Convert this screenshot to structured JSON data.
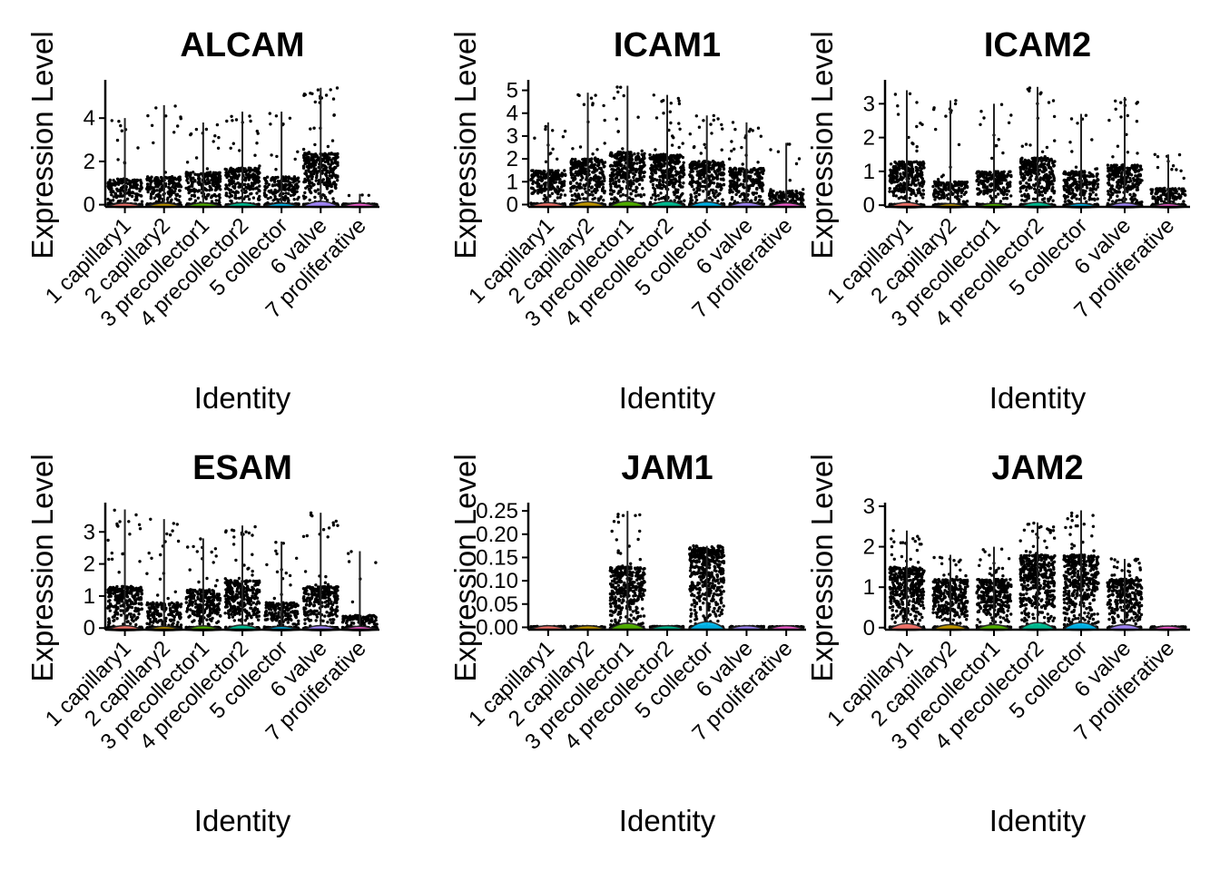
{
  "chart_data": [
    {
      "type": "violin",
      "title": "ALCAM",
      "xlabel": "Identity",
      "ylabel": "Expression Level",
      "categories": [
        "1 capillary1",
        "2 capillary2",
        "3 precollector1",
        "4 precollector2",
        "5 collector",
        "6 valve",
        "7 proliferative"
      ],
      "yticks": [
        0,
        2,
        4
      ],
      "ylim": [
        -0.1,
        5.6
      ],
      "max": [
        4.0,
        4.6,
        3.8,
        4.3,
        4.3,
        5.4,
        0.5
      ],
      "spread": [
        1.2,
        1.3,
        1.5,
        1.7,
        1.3,
        2.4,
        0.02
      ],
      "colors": [
        "#F8766D",
        "#C49A00",
        "#53B400",
        "#00C094",
        "#00B6EB",
        "#A58AFF",
        "#FB61D7"
      ]
    },
    {
      "type": "violin",
      "title": "ICAM1",
      "xlabel": "Identity",
      "ylabel": "Expression Level",
      "categories": [
        "1 capillary1",
        "2 capillary2",
        "3 precollector1",
        "4 precollector2",
        "5 collector",
        "6 valve",
        "7 proliferative"
      ],
      "yticks": [
        0,
        1,
        2,
        3,
        4,
        5
      ],
      "ylim": [
        -0.1,
        5.3
      ],
      "max": [
        3.6,
        4.9,
        5.2,
        4.8,
        3.9,
        3.6,
        2.7
      ],
      "spread": [
        1.5,
        2.0,
        2.3,
        2.2,
        1.9,
        1.6,
        0.6
      ],
      "colors": [
        "#F8766D",
        "#C49A00",
        "#53B400",
        "#00C094",
        "#00B6EB",
        "#A58AFF",
        "#FB61D7"
      ]
    },
    {
      "type": "violin",
      "title": "ICAM2",
      "xlabel": "Identity",
      "ylabel": "Expression Level",
      "categories": [
        "1 capillary1",
        "2 capillary2",
        "3 precollector1",
        "4 precollector2",
        "5 collector",
        "6 valve",
        "7 proliferative"
      ],
      "yticks": [
        0,
        1,
        2,
        3
      ],
      "ylim": [
        -0.05,
        3.6
      ],
      "max": [
        3.4,
        3.1,
        3.0,
        3.5,
        2.7,
        3.2,
        1.5
      ],
      "spread": [
        1.3,
        0.7,
        1.0,
        1.4,
        1.0,
        1.2,
        0.5
      ],
      "colors": [
        "#F8766D",
        "#C49A00",
        "#53B400",
        "#00C094",
        "#00B6EB",
        "#A58AFF",
        "#FB61D7"
      ]
    },
    {
      "type": "violin",
      "title": "ESAM",
      "xlabel": "Identity",
      "ylabel": "Expression Level",
      "categories": [
        "1 capillary1",
        "2 capillary2",
        "3 precollector1",
        "4 precollector2",
        "5 collector",
        "6 valve",
        "7 proliferative"
      ],
      "yticks": [
        0,
        1,
        2,
        3
      ],
      "ylim": [
        -0.05,
        3.8
      ],
      "max": [
        3.7,
        3.4,
        2.8,
        3.2,
        2.7,
        3.6,
        2.4
      ],
      "spread": [
        1.3,
        0.8,
        1.2,
        1.5,
        0.8,
        1.3,
        0.4
      ],
      "colors": [
        "#F8766D",
        "#C49A00",
        "#53B400",
        "#00C094",
        "#00B6EB",
        "#A58AFF",
        "#FB61D7"
      ]
    },
    {
      "type": "violin",
      "title": "JAM1",
      "xlabel": "Identity",
      "ylabel": "Expression Level",
      "categories": [
        "1 capillary1",
        "2 capillary2",
        "3 precollector1",
        "4 precollector2",
        "5 collector",
        "6 valve",
        "7 proliferative"
      ],
      "yticks": [
        "0.00",
        "0.05",
        "0.10",
        "0.15",
        "0.20",
        "0.25"
      ],
      "ylim": [
        -0.005,
        0.26
      ],
      "max": [
        0,
        0,
        0.25,
        0,
        0.175,
        0,
        0
      ],
      "spread": [
        0,
        0,
        0.13,
        0,
        0.17,
        0,
        0
      ],
      "colors": [
        "#F8766D",
        "#C49A00",
        "#53B400",
        "#00C094",
        "#00B6EB",
        "#A58AFF",
        "#FB61D7"
      ]
    },
    {
      "type": "violin",
      "title": "JAM2",
      "xlabel": "Identity",
      "ylabel": "Expression Level",
      "categories": [
        "1 capillary1",
        "2 capillary2",
        "3 precollector1",
        "4 precollector2",
        "5 collector",
        "6 valve",
        "7 proliferative"
      ],
      "yticks": [
        0,
        1,
        2,
        3
      ],
      "ylim": [
        -0.05,
        3.0
      ],
      "max": [
        2.4,
        1.8,
        2.0,
        2.6,
        2.9,
        1.7,
        0
      ],
      "spread": [
        1.5,
        1.2,
        1.2,
        1.8,
        1.8,
        1.2,
        0
      ],
      "colors": [
        "#F8766D",
        "#C49A00",
        "#53B400",
        "#00C094",
        "#00B6EB",
        "#A58AFF",
        "#FB61D7"
      ]
    }
  ]
}
